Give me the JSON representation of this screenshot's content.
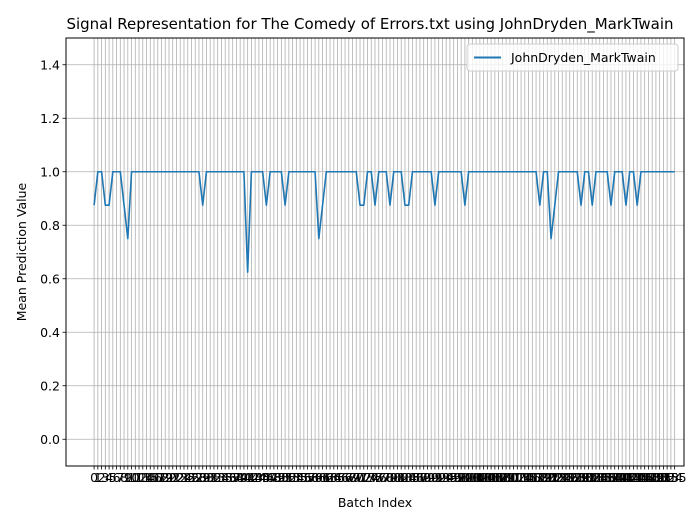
{
  "chart_data": {
    "type": "line",
    "title": "Signal Representation for The Comedy of Errors.txt using JohnDryden_MarkTwain",
    "xlabel": "Batch Index",
    "ylabel": "Mean Prediction Value",
    "ylim": [
      -0.1,
      1.5
    ],
    "xlim": [
      -7.5,
      157.5
    ],
    "yticks": [
      "0.0",
      "0.2",
      "0.4",
      "0.6",
      "0.8",
      "1.0",
      "1.2",
      "1.4"
    ],
    "ytick_values": [
      0.0,
      0.2,
      0.4,
      0.6,
      0.8,
      1.0,
      1.2,
      1.4
    ],
    "xtick_step": 1,
    "grid": true,
    "legend": "upper right",
    "series": [
      {
        "name": "JohnDryden_MarkTwain",
        "color": "#1f77b4",
        "values": [
          0.875,
          1,
          1,
          0.875,
          0.875,
          1,
          1,
          1,
          0.875,
          0.75,
          1,
          1,
          1,
          1,
          1,
          1,
          1,
          1,
          1,
          1,
          1,
          1,
          1,
          1,
          1,
          1,
          1,
          1,
          1,
          0.875,
          1,
          1,
          1,
          1,
          1,
          1,
          1,
          1,
          1,
          1,
          1,
          0.625,
          1,
          1,
          1,
          1,
          0.875,
          1,
          1,
          1,
          1,
          0.875,
          1,
          1,
          1,
          1,
          1,
          1,
          1,
          1,
          0.75,
          0.875,
          1,
          1,
          1,
          1,
          1,
          1,
          1,
          1,
          1,
          0.875,
          0.875,
          1,
          1,
          0.875,
          1,
          1,
          1,
          0.875,
          1,
          1,
          1,
          0.875,
          0.875,
          1,
          1,
          1,
          1,
          1,
          1,
          0.875,
          1,
          1,
          1,
          1,
          1,
          1,
          1,
          0.875,
          1,
          1,
          1,
          1,
          1,
          1,
          1,
          1,
          1,
          1,
          1,
          1,
          1,
          1,
          1,
          1,
          1,
          1,
          1,
          0.875,
          1,
          1,
          0.75,
          0.875,
          1,
          1,
          1,
          1,
          1,
          1,
          0.875,
          1,
          1,
          0.875,
          1,
          1,
          1,
          1,
          0.875,
          1,
          1,
          1,
          0.875,
          1,
          1,
          0.875,
          1,
          1,
          1,
          1,
          1,
          1,
          1,
          1,
          1,
          1
        ]
      }
    ]
  }
}
